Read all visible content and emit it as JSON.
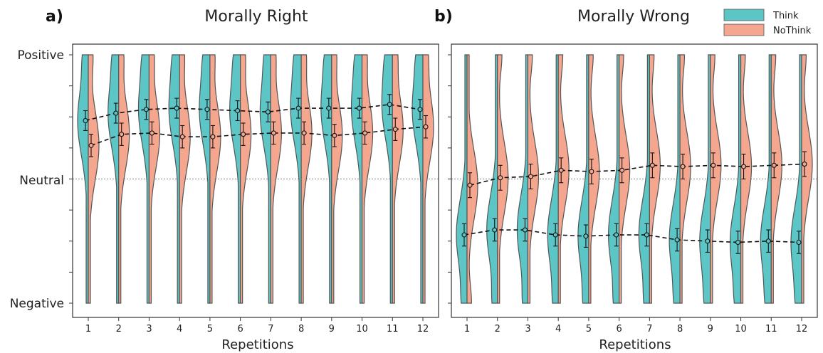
{
  "legend": {
    "entries": [
      {
        "label": "Think",
        "color": "#5cc5c6"
      },
      {
        "label": "NoThink",
        "color": "#f4a68f"
      }
    ]
  },
  "chart_data": [
    {
      "type": "violin",
      "panel_label": "a)",
      "title": "Morally Right",
      "xlabel": "Repetitions",
      "ylabel": "",
      "ytick_labels": [
        "Positive",
        "Neutral",
        "Negative"
      ],
      "ylim": [
        -1,
        1
      ],
      "categories": [
        "1",
        "2",
        "3",
        "4",
        "5",
        "6",
        "7",
        "8",
        "9",
        "10",
        "11",
        "12"
      ],
      "series": [
        {
          "name": "Think",
          "color": "#5cc5c6",
          "side": "left",
          "means": [
            0.47,
            0.53,
            0.56,
            0.57,
            0.56,
            0.55,
            0.54,
            0.57,
            0.57,
            0.57,
            0.6,
            0.56
          ],
          "errors": [
            0.08,
            0.08,
            0.08,
            0.08,
            0.08,
            0.08,
            0.08,
            0.08,
            0.08,
            0.08,
            0.08,
            0.08
          ]
        },
        {
          "name": "NoThink",
          "color": "#f4a68f",
          "side": "right",
          "means": [
            0.27,
            0.36,
            0.37,
            0.34,
            0.34,
            0.36,
            0.37,
            0.37,
            0.35,
            0.37,
            0.4,
            0.42
          ],
          "errors": [
            0.09,
            0.09,
            0.09,
            0.09,
            0.09,
            0.09,
            0.09,
            0.09,
            0.09,
            0.09,
            0.09,
            0.09
          ]
        }
      ],
      "grid": false
    },
    {
      "type": "violin",
      "panel_label": "b)",
      "title": "Morally Wrong",
      "xlabel": "Repetitions",
      "ylabel": "",
      "ylim": [
        -1,
        1
      ],
      "categories": [
        "1",
        "2",
        "3",
        "4",
        "5",
        "6",
        "7",
        "8",
        "9",
        "10",
        "11",
        "12"
      ],
      "series": [
        {
          "name": "Think",
          "color": "#5cc5c6",
          "side": "left",
          "means": [
            -0.45,
            -0.41,
            -0.41,
            -0.45,
            -0.46,
            -0.45,
            -0.45,
            -0.49,
            -0.5,
            -0.51,
            -0.5,
            -0.51
          ],
          "errors": [
            0.09,
            0.09,
            0.09,
            0.09,
            0.09,
            0.09,
            0.09,
            0.09,
            0.09,
            0.09,
            0.09,
            0.09
          ]
        },
        {
          "name": "NoThink",
          "color": "#f4a68f",
          "side": "right",
          "means": [
            -0.05,
            0.01,
            0.02,
            0.07,
            0.06,
            0.07,
            0.11,
            0.1,
            0.11,
            0.1,
            0.11,
            0.12
          ],
          "errors": [
            0.1,
            0.1,
            0.1,
            0.1,
            0.1,
            0.1,
            0.1,
            0.1,
            0.1,
            0.1,
            0.1,
            0.1
          ]
        }
      ],
      "grid": false
    }
  ]
}
